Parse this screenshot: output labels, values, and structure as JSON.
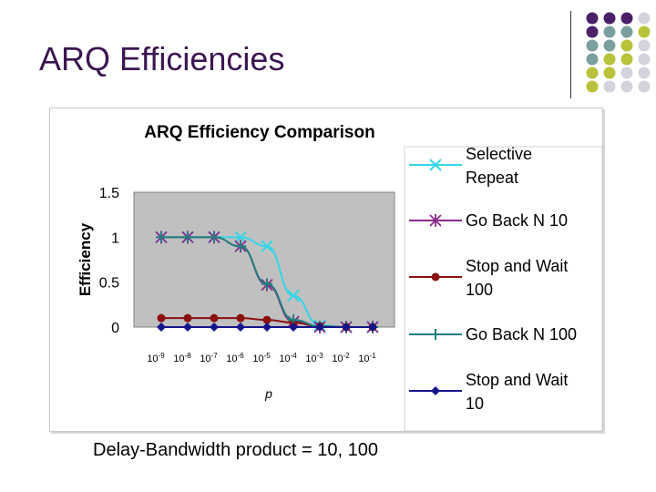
{
  "slide": {
    "title": "ARQ Efficiencies",
    "caption": "Delay-Bandwidth product = 10, 100"
  },
  "decor": {
    "dot_colors": [
      "#4a2168",
      "#7a9f9e",
      "#b8c23a",
      "#d3d3de"
    ]
  },
  "chart_data": {
    "type": "line",
    "title": "ARQ Efficiency Comparison",
    "xlabel": "p",
    "ylabel": "Efficiency",
    "x": [
      "10-9",
      "10-8",
      "10-7",
      "10-6",
      "10-5",
      "10-4",
      "10-3",
      "10-2",
      "10-1"
    ],
    "ylim": [
      0,
      1.5
    ],
    "yticks": [
      "0",
      "0.5",
      "1",
      "1.5"
    ],
    "grid": false,
    "legend_position": "right",
    "plot_bg": "#c0c0c0",
    "series": [
      {
        "name": "Selective Repeat",
        "color": "#33d6e6",
        "marker": "x",
        "values": [
          1.0,
          1.0,
          1.0,
          1.0,
          0.9,
          0.35,
          0.02,
          0.0,
          0.0
        ]
      },
      {
        "name": "Go Back N 10",
        "color": "#8a2a8a",
        "marker": "star",
        "values": [
          1.0,
          1.0,
          1.0,
          0.9,
          0.47,
          0.06,
          0.0,
          0.0,
          0.0
        ]
      },
      {
        "name": "Stop and Wait 100",
        "color": "#8b1010",
        "marker": "circle",
        "values": [
          0.1,
          0.1,
          0.1,
          0.1,
          0.08,
          0.05,
          0.01,
          0.0,
          0.0
        ]
      },
      {
        "name": "Go Back N 100",
        "color": "#227f7f",
        "marker": "plus",
        "values": [
          1.0,
          1.0,
          1.0,
          0.9,
          0.48,
          0.08,
          0.01,
          0.0,
          0.0
        ]
      },
      {
        "name": "Stop and Wait 10",
        "color": "#14148a",
        "marker": "diamond",
        "values": [
          0.0,
          0.0,
          0.0,
          0.0,
          0.0,
          0.0,
          0.0,
          0.0,
          0.0
        ]
      }
    ]
  }
}
